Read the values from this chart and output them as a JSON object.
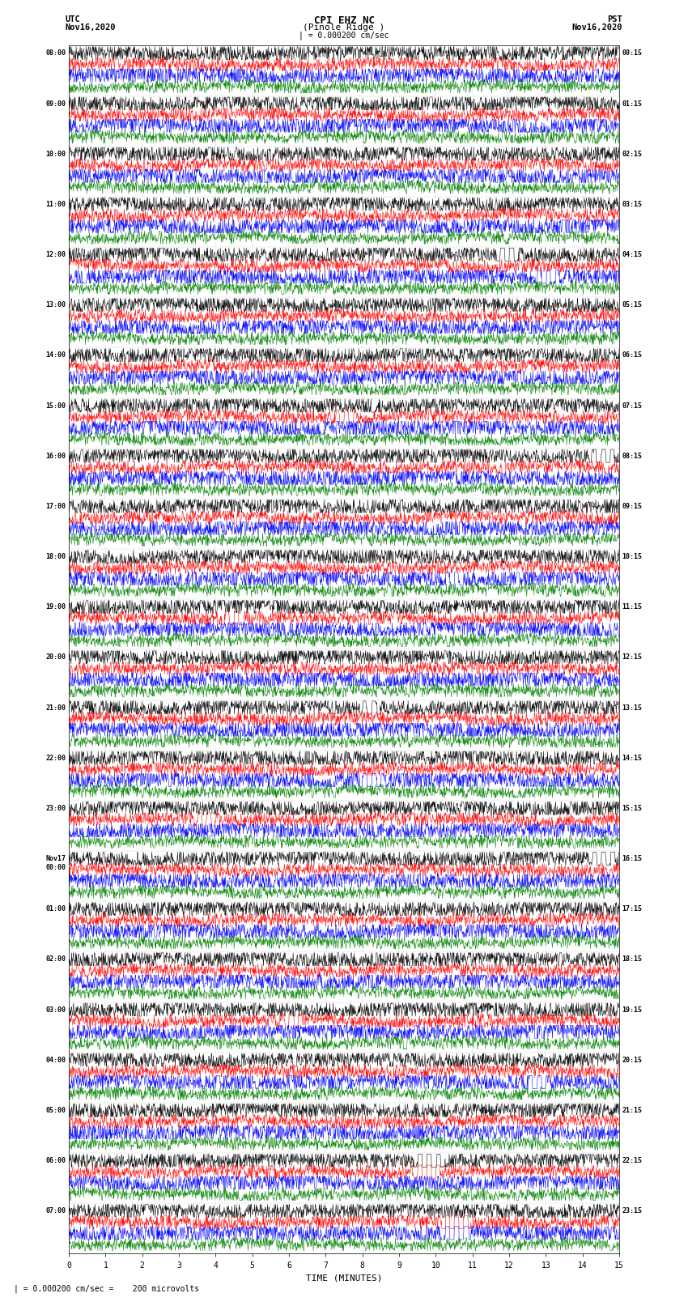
{
  "title_line1": "CPI EHZ NC",
  "title_line2": "(Pinole Ridge )",
  "scale_text": "| = 0.000200 cm/sec",
  "left_header_line1": "UTC",
  "left_header_line2": "Nov16,2020",
  "right_header_line1": "PST",
  "right_header_line2": "Nov16,2020",
  "bottom_note": "| = 0.000200 cm/sec =    200 microvolts",
  "xlabel": "TIME (MINUTES)",
  "utc_labels": [
    "08:00",
    "09:00",
    "10:00",
    "11:00",
    "12:00",
    "13:00",
    "14:00",
    "15:00",
    "16:00",
    "17:00",
    "18:00",
    "19:00",
    "20:00",
    "21:00",
    "22:00",
    "23:00",
    "Nov17\n00:00",
    "01:00",
    "02:00",
    "03:00",
    "04:00",
    "05:00",
    "06:00",
    "07:00"
  ],
  "pst_labels": [
    "00:15",
    "01:15",
    "02:15",
    "03:15",
    "04:15",
    "05:15",
    "06:15",
    "07:15",
    "08:15",
    "09:15",
    "10:15",
    "11:15",
    "12:15",
    "13:15",
    "14:15",
    "15:15",
    "16:15",
    "17:15",
    "18:15",
    "19:15",
    "20:15",
    "21:15",
    "22:15",
    "23:15"
  ],
  "trace_colors": [
    "black",
    "red",
    "blue",
    "green"
  ],
  "num_rows": 24,
  "traces_per_row": 4,
  "x_ticks": [
    0,
    1,
    2,
    3,
    4,
    5,
    6,
    7,
    8,
    9,
    10,
    11,
    12,
    13,
    14,
    15
  ],
  "x_min": 0,
  "x_max": 15,
  "bg_color": "white",
  "grid_color": "#aaaaaa",
  "noise_scale": [
    0.1,
    0.08,
    0.11,
    0.07
  ]
}
